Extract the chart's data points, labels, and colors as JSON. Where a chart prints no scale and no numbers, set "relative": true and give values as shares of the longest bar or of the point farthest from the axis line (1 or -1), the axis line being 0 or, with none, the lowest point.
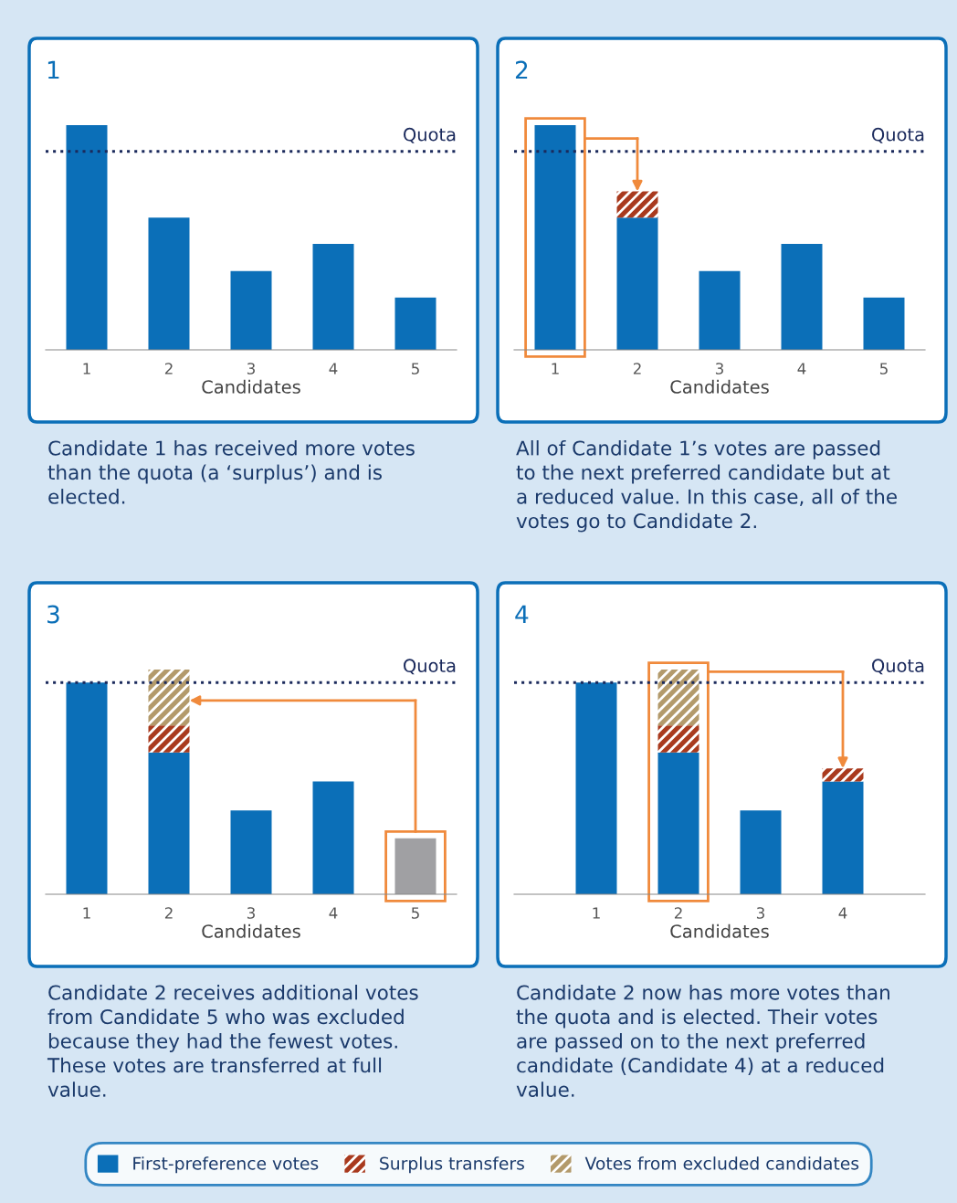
{
  "chart_data": [
    {
      "type": "bar",
      "title": "1",
      "xlabel": "Candidates",
      "categories": [
        "1",
        "2",
        "3",
        "4",
        "5"
      ],
      "stacked": true,
      "relative": true,
      "series": [
        {
          "color": "#0b6fb8",
          "values": [
            1,
            0.588,
            0.35,
            0.471,
            0.233
          ]
        }
      ],
      "ref_lines": [
        {
          "axis": "y",
          "value": 0.883,
          "label": "Quota",
          "color": "#1b2a5c",
          "line_style": "dotted"
        }
      ],
      "annotations": [
        "Candidate 1 has received more votes\nthan the quota (a ‘surplus’) and is\nelected."
      ]
    },
    {
      "type": "bar",
      "title": "2",
      "xlabel": "Candidates",
      "categories": [
        "1",
        "2",
        "3",
        "4",
        "5"
      ],
      "stacked": true,
      "relative": true,
      "series": [
        {
          "color": "#0b6fb8",
          "values": [
            1,
            0.588,
            0.35,
            0.471,
            0.233
          ]
        },
        {
          "color": "#a93a1e",
          "values": [
            null,
            0.117,
            null,
            null,
            null
          ]
        }
      ],
      "ref_lines": [
        {
          "axis": "y",
          "value": 0.883,
          "label": "Quota",
          "color": "#1b2a5c",
          "line_style": "dotted"
        }
      ],
      "annotations": [
        "All of Candidate 1’s votes are passed\nto the next preferred candidate but at\na reduced value. In this case, all of the\nvotes go to Candidate 2."
      ]
    },
    {
      "type": "bar",
      "title": "3",
      "xlabel": "Candidates",
      "categories": [
        "1",
        "2",
        "3",
        "4",
        "5"
      ],
      "stacked": true,
      "relative": true,
      "series": [
        {
          "colors": [
            "#0b6fb8",
            "#0b6fb8",
            "#0b6fb8",
            "#0b6fb8",
            "#a0a0a3"
          ],
          "values": [
            0.942,
            0.631,
            0.373,
            0.502,
            0.249
          ]
        },
        {
          "color": "#a93a1e",
          "values": [
            null,
            0.12,
            null,
            null,
            null
          ]
        },
        {
          "color": "#b39a6b",
          "values": [
            null,
            0.249,
            null,
            null,
            null
          ]
        }
      ],
      "ref_lines": [
        {
          "axis": "y",
          "value": 0.942,
          "label": "Quota",
          "color": "#1b2a5c",
          "line_style": "dotted"
        }
      ],
      "annotations": [
        "Candidate 2 receives additional votes\nfrom Candidate 5 who was excluded\nbecause they had the fewest votes.\nThese votes are transferred at full\nvalue."
      ]
    },
    {
      "type": "bar",
      "title": "4",
      "xlabel": "Candidates",
      "categories": [
        "1",
        "2",
        "3",
        "4"
      ],
      "stacked": true,
      "relative": true,
      "legend": "bottom",
      "series": [
        {
          "name": "First-preference votes",
          "color": "#0b6fb8",
          "values": [
            0.942,
            0.631,
            0.373,
            0.502
          ]
        },
        {
          "name": "Surplus transfers",
          "color": "#a93a1e",
          "values": [
            null,
            0.12,
            null,
            0.058
          ]
        },
        {
          "name": "Votes from excluded candidates",
          "color": "#b39a6b",
          "values": [
            null,
            0.249,
            null,
            null
          ]
        }
      ],
      "ref_lines": [
        {
          "axis": "y",
          "value": 0.942,
          "label": "Quota",
          "color": "#1b2a5c",
          "line_style": "dotted"
        }
      ],
      "annotations": [
        "Candidate 2 now has more votes than\nthe quota and is elected. Their votes\nare passed on to the next preferred\ncandidate (Candidate 4) at a reduced\nvalue."
      ]
    }
  ]
}
